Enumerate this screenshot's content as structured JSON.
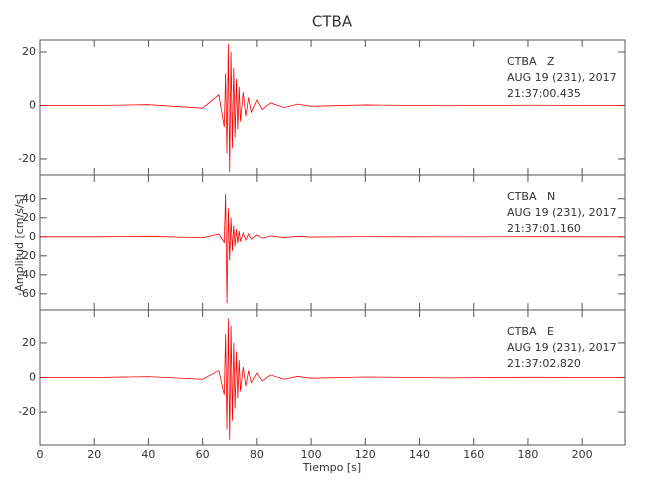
{
  "chart_data": [
    {
      "type": "line",
      "title": "CTBA",
      "color": "#ff0000",
      "annotations": [
        "CTBA   Z",
        "AUG 19 (231), 2017",
        "21:37:00.435"
      ],
      "xlim": [
        0,
        215.8
      ],
      "ylim": [
        -26,
        24.5
      ],
      "yticks": [
        -20,
        0,
        20
      ],
      "x": [
        0,
        20,
        40,
        60,
        66,
        68,
        68.5,
        69,
        69.5,
        70,
        70.5,
        71,
        71.5,
        72,
        72.5,
        73,
        73.5,
        74,
        75,
        76,
        77,
        78,
        80,
        82,
        85,
        90,
        95,
        100,
        120,
        150,
        180,
        215
      ],
      "values": [
        0,
        0,
        0.3,
        -1,
        4,
        -8,
        12,
        -18,
        23,
        -25,
        20,
        -16,
        14,
        -12,
        10,
        -9,
        7,
        -6,
        5,
        -4,
        3,
        -2.5,
        2,
        -1.5,
        1,
        -0.8,
        0.5,
        -0.3,
        0.2,
        -0.1,
        0.1,
        0
      ]
    },
    {
      "type": "line",
      "ylabel": "Amplitud [cm/s/s]",
      "color": "#ff0000",
      "annotations": [
        "CTBA   N",
        "AUG 19 (231), 2017",
        "21:37:01.160"
      ],
      "xlim": [
        0,
        215.8
      ],
      "ylim": [
        -77,
        65
      ],
      "yticks": [
        -60,
        -40,
        -20,
        0,
        20,
        40
      ],
      "x": [
        0,
        20,
        40,
        60,
        66,
        68,
        68.5,
        69,
        69.5,
        70,
        70.5,
        71,
        71.5,
        72,
        72.5,
        73,
        73.5,
        74,
        75,
        76,
        77,
        78,
        80,
        82,
        85,
        90,
        95,
        100,
        120,
        150,
        180,
        215
      ],
      "values": [
        0,
        0,
        0.5,
        -1,
        3,
        -6,
        45,
        -70,
        30,
        -25,
        20,
        -15,
        12,
        -10,
        8,
        -7,
        6,
        -5,
        4,
        -3.5,
        3,
        -2.5,
        2,
        -1.5,
        1,
        -0.8,
        0.5,
        -0.3,
        0.2,
        -0.1,
        0.1,
        0
      ]
    },
    {
      "type": "line",
      "xlabel": "Tiempo [s]",
      "color": "#ff0000",
      "annotations": [
        "CTBA   E",
        "AUG 19 (231), 2017",
        "21:37:02.820"
      ],
      "xlim": [
        0,
        215.8
      ],
      "xticks": [
        0,
        20,
        40,
        60,
        80,
        100,
        120,
        140,
        160,
        180,
        200
      ],
      "ylim": [
        -39,
        39
      ],
      "yticks": [
        -20,
        0,
        20
      ],
      "x": [
        0,
        20,
        40,
        60,
        66,
        68,
        68.5,
        69,
        69.5,
        70,
        70.5,
        71,
        71.5,
        72,
        72.5,
        73,
        73.5,
        74,
        75,
        76,
        77,
        78,
        80,
        82,
        85,
        90,
        95,
        100,
        120,
        150,
        180,
        215
      ],
      "values": [
        0,
        0,
        0.5,
        -1,
        4,
        -10,
        25,
        -30,
        34,
        -36,
        30,
        -25,
        20,
        -18,
        15,
        -12,
        10,
        -8,
        6,
        -5,
        4,
        -3,
        2.5,
        -2,
        1.5,
        -1,
        0.6,
        -0.4,
        0.3,
        -0.2,
        0.1,
        0
      ]
    }
  ]
}
